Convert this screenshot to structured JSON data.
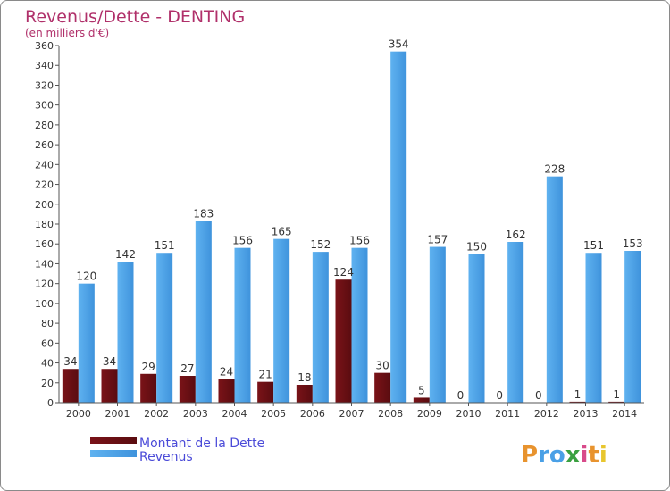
{
  "chart_data": {
    "type": "bar",
    "title": "Revenus/Dette - DENTING",
    "subtitle": "(en milliers d'€)",
    "categories": [
      "2000",
      "2001",
      "2002",
      "2003",
      "2004",
      "2005",
      "2006",
      "2007",
      "2008",
      "2009",
      "2010",
      "2011",
      "2012",
      "2013",
      "2014"
    ],
    "series": [
      {
        "name": "Montant de la Dette",
        "color": "#6b0f12",
        "values": [
          34,
          34,
          29,
          27,
          24,
          21,
          18,
          124,
          30,
          5,
          0,
          0,
          0,
          1,
          1
        ]
      },
      {
        "name": "Revenus",
        "color": "#4aa0e6",
        "values": [
          120,
          142,
          151,
          183,
          156,
          165,
          152,
          156,
          354,
          157,
          150,
          162,
          228,
          151,
          153
        ]
      }
    ],
    "ylim": [
      0,
      360
    ],
    "ytick_step": 20,
    "grid": false,
    "legend_position": "bottom-left",
    "logo": "Proxiti"
  }
}
